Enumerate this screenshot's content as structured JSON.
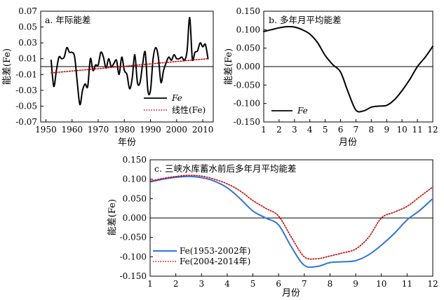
{
  "chart_data": [
    {
      "id": "a",
      "type": "line",
      "title": "a. 年际能差",
      "xlabel": "年份",
      "ylabel": "能差(Fe)",
      "xlim": [
        1948,
        2014
      ],
      "ylim": [
        -0.07,
        0.07
      ],
      "xticks": [
        1950,
        1960,
        1970,
        1980,
        1990,
        2000,
        2010
      ],
      "yticks": [
        0.07,
        0.05,
        0.03,
        0.01,
        -0.01,
        -0.03,
        -0.05,
        -0.07
      ],
      "ytick_labels": [
        "0.07",
        "0.05",
        "0.03",
        "0.01",
        "-0.01",
        "-0.03",
        "-0.05",
        "-0.07"
      ],
      "reference_line": 0,
      "legend_position": "lower-right",
      "series": [
        {
          "name": "Fe",
          "color": "#000000",
          "style": "solid",
          "x": [
            1952,
            1953,
            1954,
            1955,
            1956,
            1957,
            1958,
            1959,
            1960,
            1961,
            1962,
            1963,
            1964,
            1965,
            1966,
            1967,
            1968,
            1969,
            1970,
            1971,
            1972,
            1973,
            1974,
            1975,
            1976,
            1977,
            1978,
            1979,
            1980,
            1981,
            1982,
            1983,
            1984,
            1985,
            1986,
            1987,
            1988,
            1989,
            1990,
            1991,
            1992,
            1993,
            1994,
            1995,
            1996,
            1997,
            1998,
            1999,
            2000,
            2001,
            2002,
            2003,
            2004,
            2005,
            2006,
            2007,
            2008,
            2009,
            2010,
            2011,
            2012
          ],
          "y": [
            0.008,
            -0.025,
            -0.005,
            0.012,
            0.01,
            0.012,
            0.024,
            0.018,
            0.018,
            0.012,
            -0.02,
            -0.048,
            -0.03,
            -0.022,
            -0.025,
            0.01,
            -0.005,
            0.002,
            0.002,
            0.018,
            0.012,
            -0.002,
            0.01,
            0.0,
            0.004,
            0.008,
            -0.01,
            0.012,
            -0.005,
            -0.01,
            -0.028,
            -0.015,
            0.015,
            -0.02,
            -0.02,
            0.003,
            0.018,
            -0.03,
            -0.03,
            0.01,
            0.024,
            0.012,
            -0.02,
            -0.005,
            0.005,
            0.012,
            0.008,
            0.015,
            0.01,
            0.01,
            0.012,
            0.008,
            0.02,
            0.062,
            0.01,
            0.018,
            0.02,
            0.03,
            0.025,
            0.028,
            0.01
          ]
        },
        {
          "name": "线性(Fe)",
          "color": "#cc0000",
          "style": "dotted",
          "x": [
            1952,
            2012
          ],
          "y": [
            -0.008,
            0.01
          ]
        }
      ]
    },
    {
      "id": "b",
      "type": "line",
      "title": "b. 多年月平均能差",
      "xlabel": "月份",
      "ylabel": "能差(Fe)",
      "xlim": [
        1,
        12
      ],
      "ylim": [
        -0.15,
        0.15
      ],
      "xticks": [
        1,
        2,
        3,
        4,
        5,
        6,
        7,
        8,
        9,
        10,
        11,
        12
      ],
      "yticks": [
        0.15,
        0.1,
        0.05,
        0,
        -0.05,
        -0.1,
        -0.15
      ],
      "ytick_labels": [
        "0.150",
        "0.100",
        "0.050",
        "0.000",
        "-0.050",
        "-0.100",
        "-0.150"
      ],
      "reference_line": 0,
      "legend_position": "lower-left",
      "series": [
        {
          "name": "Fe",
          "color": "#000000",
          "style": "solid",
          "x": [
            1,
            1.5,
            2,
            2.5,
            3,
            3.5,
            4,
            4.5,
            5,
            5.5,
            6,
            6.5,
            7,
            7.5,
            8,
            8.5,
            9,
            9.5,
            10,
            10.5,
            11,
            11.5,
            12
          ],
          "y": [
            0.095,
            0.1,
            0.105,
            0.108,
            0.107,
            0.1,
            0.088,
            0.065,
            0.03,
            0.005,
            -0.015,
            -0.07,
            -0.118,
            -0.12,
            -0.11,
            -0.107,
            -0.105,
            -0.09,
            -0.065,
            -0.035,
            0.0,
            0.025,
            0.055
          ]
        }
      ]
    },
    {
      "id": "c",
      "type": "line",
      "title": "c. 三峡水库蓄水前后多年月平均能差",
      "xlabel": "月份",
      "ylabel": "能差(Fe)",
      "xlim": [
        1,
        12
      ],
      "ylim": [
        -0.15,
        0.15
      ],
      "xticks": [
        1,
        2,
        3,
        4,
        5,
        6,
        7,
        8,
        9,
        10,
        11,
        12
      ],
      "yticks": [
        0.15,
        0.1,
        0.05,
        0,
        -0.05,
        -0.1,
        -0.15
      ],
      "ytick_labels": [
        "0.150",
        "0.100",
        "0.050",
        "0.000",
        "-0.050",
        "-0.100",
        "-0.150"
      ],
      "reference_line": 0,
      "legend_position": "lower-left",
      "series": [
        {
          "name": "Fe(1953-2002年)",
          "color": "#2f74d8",
          "style": "solid",
          "x": [
            1,
            1.5,
            2,
            2.5,
            3,
            3.5,
            4,
            4.5,
            5,
            5.5,
            6,
            6.5,
            7,
            7.5,
            8,
            8.5,
            9,
            9.5,
            10,
            10.5,
            11,
            11.5,
            12
          ],
          "y": [
            0.093,
            0.1,
            0.105,
            0.107,
            0.104,
            0.095,
            0.078,
            0.05,
            0.018,
            0.0,
            -0.018,
            -0.075,
            -0.122,
            -0.125,
            -0.115,
            -0.113,
            -0.11,
            -0.095,
            -0.07,
            -0.04,
            -0.005,
            0.02,
            0.05
          ]
        },
        {
          "name": "Fe(2004-2014年)",
          "color": "#cc0000",
          "style": "dotted",
          "x": [
            1,
            1.5,
            2,
            2.5,
            3,
            3.5,
            4,
            4.5,
            5,
            5.5,
            6,
            6.5,
            7,
            7.5,
            8,
            8.5,
            9,
            9.5,
            10,
            10.5,
            11,
            11.5,
            12
          ],
          "y": [
            0.095,
            0.102,
            0.107,
            0.11,
            0.108,
            0.1,
            0.088,
            0.07,
            0.045,
            0.025,
            0.005,
            -0.05,
            -0.1,
            -0.105,
            -0.098,
            -0.09,
            -0.08,
            -0.05,
            0.0,
            0.015,
            0.03,
            0.055,
            0.08
          ]
        }
      ]
    }
  ]
}
